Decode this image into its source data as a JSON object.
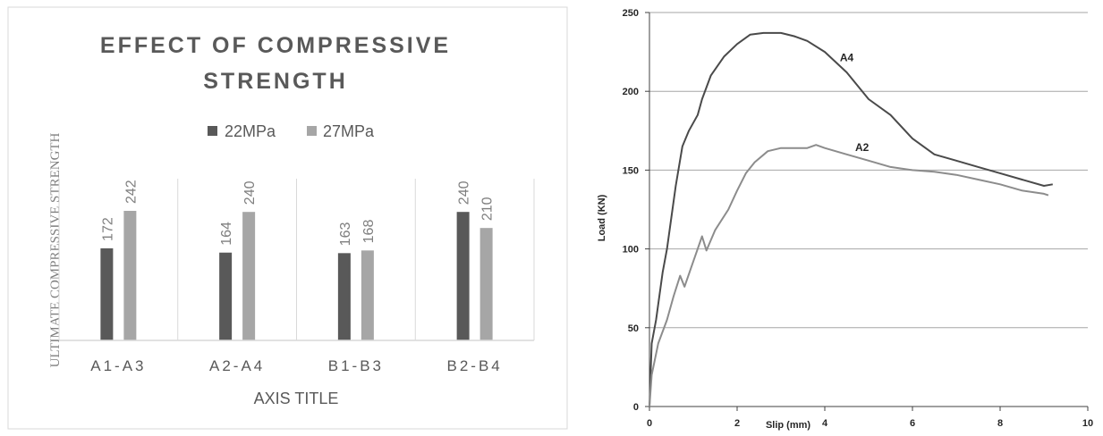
{
  "chart_data": [
    {
      "type": "bar",
      "title": "EFFECT OF COMPRESSIVE STRENGTH",
      "title_lines": [
        "EFFECT OF COMPRESSIVE",
        "STRENGTH"
      ],
      "xlabel": "AXIS TITLE",
      "ylabel": "ULTIMATE COMPRESSIVE STRENGTH",
      "categories": [
        "A1-A3",
        "A2-A4",
        "B1-B3",
        "B2-B4"
      ],
      "series": [
        {
          "name": "22MPa",
          "values": [
            172,
            164,
            163,
            240
          ],
          "color": "#595959"
        },
        {
          "name": "27MPa",
          "values": [
            242,
            240,
            168,
            210
          ],
          "color": "#a6a6a6"
        }
      ],
      "ylim": [
        0,
        300
      ],
      "legend": "top",
      "grid": false,
      "data_labels": true
    },
    {
      "type": "line",
      "title": "",
      "xlabel": "Slip (mm)",
      "ylabel": "Load (KN)",
      "xlim": [
        0,
        10
      ],
      "ylim": [
        0,
        250
      ],
      "xticks": [
        "0",
        "2",
        "4",
        "6",
        "8",
        "10"
      ],
      "yticks": [
        "0",
        "50",
        "100",
        "150",
        "200",
        "250"
      ],
      "grid": true,
      "series": [
        {
          "name": "A4",
          "color": "#4a4a4a",
          "x": [
            0,
            0.05,
            0.15,
            0.3,
            0.4,
            0.5,
            0.6,
            0.75,
            0.9,
            1.1,
            1.2,
            1.4,
            1.7,
            2.0,
            2.3,
            2.6,
            3.0,
            3.3,
            3.6,
            4.0,
            4.5,
            5.0,
            5.5,
            6.0,
            6.5,
            7.0,
            7.5,
            8.0,
            8.5,
            9.0,
            9.2
          ],
          "y": [
            0,
            40,
            55,
            85,
            100,
            120,
            140,
            165,
            175,
            185,
            195,
            210,
            222,
            230,
            236,
            237,
            237,
            235,
            232,
            225,
            212,
            195,
            185,
            170,
            160,
            156,
            152,
            148,
            144,
            140,
            141
          ]
        },
        {
          "name": "A2",
          "color": "#8c8c8c",
          "x": [
            0,
            0.05,
            0.2,
            0.4,
            0.55,
            0.7,
            0.8,
            0.95,
            1.1,
            1.2,
            1.3,
            1.5,
            1.8,
            2.0,
            2.2,
            2.4,
            2.7,
            3.0,
            3.4,
            3.6,
            3.8,
            4.0,
            4.5,
            5.0,
            5.5,
            6.0,
            6.5,
            7.0,
            7.5,
            8.0,
            8.5,
            9.0,
            9.1
          ],
          "y": [
            0,
            20,
            40,
            55,
            70,
            83,
            76,
            88,
            100,
            108,
            99,
            112,
            125,
            137,
            148,
            155,
            162,
            164,
            164,
            164,
            166,
            164,
            160,
            156,
            152,
            150,
            149,
            147,
            144,
            141,
            137,
            135,
            134
          ]
        }
      ],
      "series_label_positions": [
        {
          "name": "A4",
          "x": 4.5,
          "y": 219
        },
        {
          "name": "A2",
          "x": 4.85,
          "y": 162
        }
      ]
    }
  ]
}
